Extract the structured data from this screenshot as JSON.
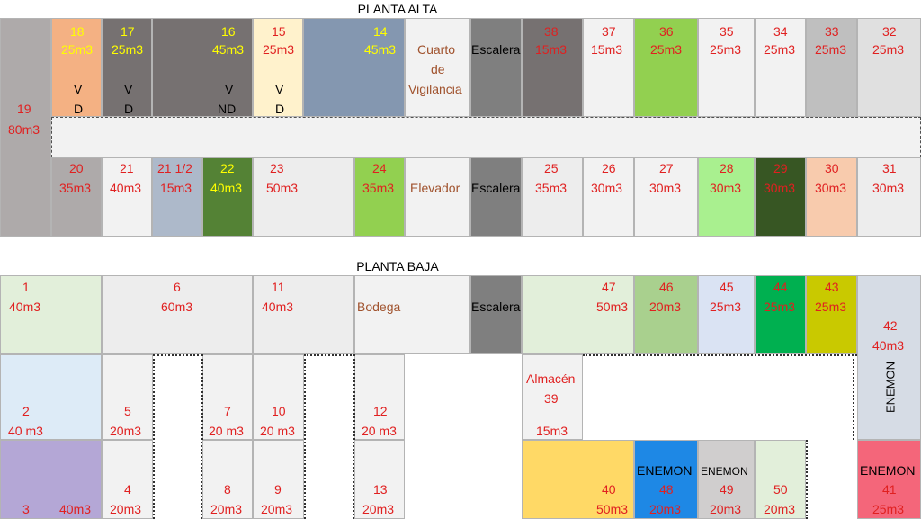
{
  "titles": {
    "upper": "PLANTA ALTA",
    "lower": "PLANTA BAJA"
  },
  "colors": {
    "gray_dark": "#767171",
    "gray_mid": "#a6a6a6",
    "gray_light": "#ededed",
    "orange": "#f4b183",
    "cream": "#fff2cc",
    "blue_gray": "#8497b0",
    "light_blue_gray": "#adb9ca",
    "green_dark": "#548235",
    "green_light": "#92d050",
    "green_pale": "#a9f08f",
    "green_forest": "#375623",
    "peach": "#f8cbad",
    "mint": "#e2efda",
    "olive": "#a9d08e",
    "lavender": "#dae3f3",
    "green_vivid": "#00b050",
    "mustard": "#c9c900",
    "sky": "#deebf7",
    "purple": "#b4a7d6",
    "gold": "#ffd966",
    "blue": "#1e88e5",
    "pink": "#f4667a",
    "pale_green": "#e2efda"
  },
  "upper_rooms": {
    "r19": {
      "num": "19",
      "vol": "80m3"
    },
    "r18": {
      "num": "18",
      "vol": "25m3",
      "mark1": "V",
      "mark2": "D"
    },
    "r17": {
      "num": "17",
      "vol": "25m3",
      "mark1": "V",
      "mark2": "D"
    },
    "r16": {
      "num": "16",
      "vol": "45m3",
      "mark1": "V",
      "mark2": "ND"
    },
    "r15": {
      "num": "15",
      "vol": "25m3",
      "mark1": "V",
      "mark2": "D"
    },
    "r14": {
      "num": "14",
      "vol": "45m3"
    },
    "guard": {
      "l1": "Cuarto",
      "l2": "de",
      "l3": "Vigilancia"
    },
    "stairs_top": {
      "label": "Escalera"
    },
    "r38": {
      "num": "38",
      "vol": "15m3"
    },
    "r37": {
      "num": "37",
      "vol": "15m3"
    },
    "r36": {
      "num": "36",
      "vol": "25m3"
    },
    "r35": {
      "num": "35",
      "vol": "25m3"
    },
    "r34": {
      "num": "34",
      "vol": "25m3"
    },
    "r33": {
      "num": "33",
      "vol": "25m3"
    },
    "r32": {
      "num": "32",
      "vol": "25m3"
    },
    "r20": {
      "num": "20",
      "vol": "35m3"
    },
    "r21": {
      "num": "21",
      "vol": "40m3"
    },
    "r21h": {
      "num": "21 1/2",
      "vol": "15m3"
    },
    "r22": {
      "num": "22",
      "vol": "40m3"
    },
    "r23": {
      "num": "23",
      "vol": "50m3"
    },
    "r24": {
      "num": "24",
      "vol": "35m3"
    },
    "elevator": {
      "label": "Elevador"
    },
    "stairs_mid": {
      "label": "Escalera"
    },
    "r25": {
      "num": "25",
      "vol": "35m3"
    },
    "r26": {
      "num": "26",
      "vol": "30m3"
    },
    "r27": {
      "num": "27",
      "vol": "30m3"
    },
    "r28": {
      "num": "28",
      "vol": "30m3"
    },
    "r29": {
      "num": "29",
      "vol": "30m3"
    },
    "r30": {
      "num": "30",
      "vol": "30m3"
    },
    "r31": {
      "num": "31",
      "vol": "30m3"
    }
  },
  "lower_rooms": {
    "r1": {
      "num": "1",
      "vol": "40m3"
    },
    "r6": {
      "num": "6",
      "vol": "60m3"
    },
    "r11": {
      "num": "11",
      "vol": "40m3"
    },
    "bodega": {
      "label": "Bodega"
    },
    "stairs_low": {
      "label": "Escalera"
    },
    "r47": {
      "num": "47",
      "vol": "50m3"
    },
    "r46": {
      "num": "46",
      "vol": "20m3"
    },
    "r45": {
      "num": "45",
      "vol": "25m3"
    },
    "r44": {
      "num": "44",
      "vol": "25m3"
    },
    "r43": {
      "num": "43",
      "vol": "25m3"
    },
    "r42": {
      "num": "42",
      "vol": "40m3",
      "tag": "ENEMON"
    },
    "r2": {
      "num": "2",
      "vol": "40 m3"
    },
    "r5": {
      "num": "5",
      "vol": "20m3"
    },
    "r7": {
      "num": "7",
      "vol": "20 m3"
    },
    "r10": {
      "num": "10",
      "vol": "20 m3"
    },
    "r12": {
      "num": "12",
      "vol": "20 m3"
    },
    "r39": {
      "l1": "Almacén",
      "num": "39",
      "vol": "15m3"
    },
    "r3": {
      "num": "3",
      "vol": "40m3"
    },
    "r4": {
      "num": "4",
      "vol": "20m3"
    },
    "r8": {
      "num": "8",
      "vol": "20m3"
    },
    "r9": {
      "num": "9",
      "vol": "20m3"
    },
    "r13": {
      "num": "13",
      "vol": "20m3"
    },
    "r40": {
      "num": "40",
      "vol": "50m3"
    },
    "r48": {
      "tag": "ENEMON",
      "num": "48",
      "vol": "20m3"
    },
    "r49": {
      "tag": "ENEMON",
      "num": "49",
      "vol": "20m3"
    },
    "r50": {
      "num": "50",
      "vol": "20m3"
    },
    "r41": {
      "tag": "ENEMON",
      "num": "41",
      "vol": "25m3"
    }
  }
}
